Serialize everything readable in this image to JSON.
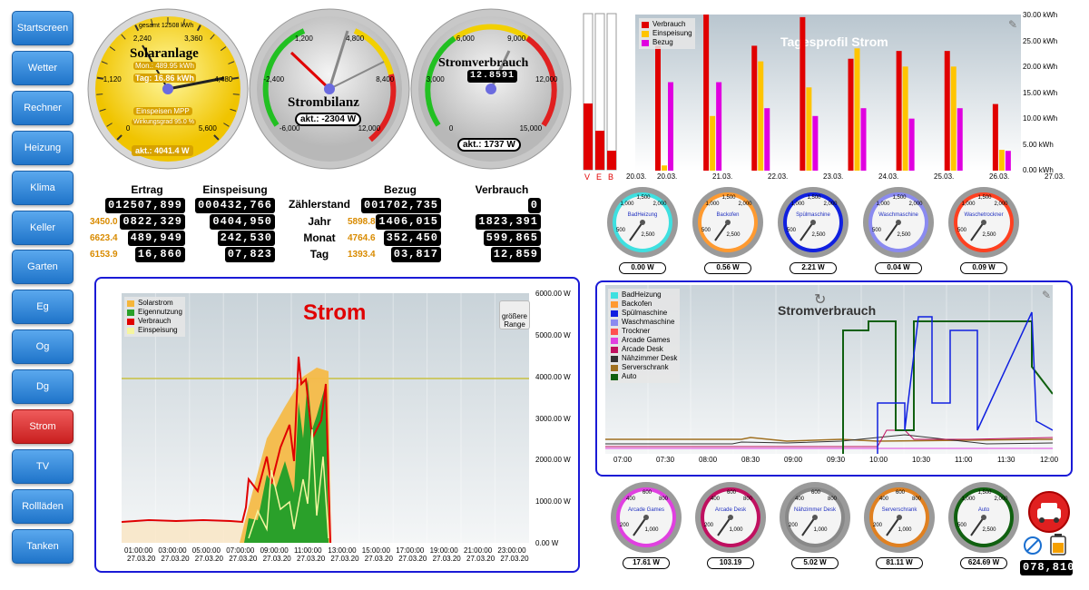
{
  "nav": {
    "items": [
      "Startscreen",
      "Wetter",
      "Rechner",
      "Heizung",
      "Klima",
      "Keller",
      "Garten",
      "Eg",
      "Og",
      "Dg",
      "Strom",
      "TV",
      "Rollläden",
      "Tanken"
    ],
    "active": "Strom"
  },
  "gauges": {
    "solar": {
      "title": "Solaranlage",
      "line1": "gesamt 12508 kWh",
      "line2": "Mon.: 489.95 kWh",
      "line3": "Tag: 16.86 kWh",
      "box1": "Einspeisen MPP",
      "box2": "Wirkungsgrad 95.0 %",
      "value": "akt.: 4041.4 W",
      "ticks": [
        "0",
        "1,120",
        "2,240",
        "3,360",
        "4,480",
        "5,600"
      ]
    },
    "bilanz": {
      "title": "Strombilanz",
      "value": "akt.: -2304 W",
      "ticks": [
        "-6,000",
        "-2,400",
        "1,200",
        "4,800",
        "8,400",
        "12,000"
      ]
    },
    "verbrauch": {
      "title": "Stromverbrauch",
      "counter": "12.8591",
      "value": "akt.: 1737 W",
      "ticks": [
        "0",
        "3,000",
        "6,000",
        "9,000",
        "12,000",
        "15,000"
      ]
    }
  },
  "vbars": {
    "labels": [
      "V",
      "E",
      "B"
    ]
  },
  "meter_table": {
    "headers": [
      "Ertrag",
      "Einspeisung",
      "Zählerstand",
      "Bezug",
      "Verbrauch"
    ],
    "rows": [
      {
        "label": "",
        "ertrag": "012507,899",
        "einsp": "000432,766",
        "bezug": "001702,735",
        "verbr": "0"
      },
      {
        "label": "Jahr",
        "side1": "3450.0",
        "ertrag": "0822,329",
        "einsp": "0404,950",
        "side2": "5898.8",
        "bezug": "1406,015",
        "verbr": "1823,391"
      },
      {
        "label": "Monat",
        "side1": "6623.4",
        "ertrag": "489,949",
        "einsp": "242,530",
        "side2": "4764.6",
        "bezug": "352,450",
        "verbr": "599,865"
      },
      {
        "label": "Tag",
        "side1": "6153.9",
        "ertrag": "16,860",
        "einsp": "07,823",
        "side2": "1393.4",
        "bezug": "03,817",
        "verbr": "12,859"
      }
    ]
  },
  "tagesprofil": {
    "title": "Tagesprofil Strom",
    "legend": [
      "Verbrauch",
      "Einspeisung",
      "Bezug"
    ],
    "colors": [
      "#e00000",
      "#ffc400",
      "#e000e0"
    ],
    "y_ticks": [
      "0.00 kWh",
      "5.00 kWh",
      "10.00 kWh",
      "15.00 kWh",
      "20.00 kWh",
      "25.00 kWh",
      "30.00 kWh"
    ],
    "x_ticks": [
      "20.03.",
      "21.03.",
      "22.03.",
      "23.03.",
      "24.03.",
      "25.03.",
      "26.03.",
      "27.03."
    ],
    "x_ticks2": [
      "20.03."
    ]
  },
  "chart_data": [
    {
      "type": "bar",
      "title": "Tagesprofil Strom",
      "categories": [
        "20.03.",
        "21.03.",
        "22.03.",
        "23.03.",
        "24.03.",
        "25.03.",
        "26.03.",
        "27.03."
      ],
      "ylim": [
        0,
        30
      ],
      "series": [
        {
          "name": "Verbrauch",
          "values": [
            24,
            30,
            24,
            29.5,
            21.5,
            23,
            23,
            12.8
          ]
        },
        {
          "name": "Einspeisung",
          "values": [
            1,
            10.5,
            21,
            16,
            23.5,
            20,
            20,
            4
          ]
        },
        {
          "name": "Bezug",
          "values": [
            17,
            17,
            12,
            10.5,
            12,
            10,
            12,
            3.8
          ]
        }
      ]
    },
    {
      "type": "area",
      "title": "Strom",
      "ylim": [
        0,
        6000
      ],
      "y_ticks": [
        "0.00 W",
        "1000.00 W",
        "2000.00 W",
        "3000.00 W",
        "4000.00 W",
        "5000.00 W",
        "6000.00 W"
      ],
      "x_ticks": [
        "01:00:00",
        "03:00:00",
        "05:00:00",
        "07:00:00",
        "09:00:00",
        "11:00:00",
        "13:00:00",
        "15:00:00",
        "17:00:00",
        "19:00:00",
        "21:00:00",
        "23:00:00"
      ],
      "x_date": "27.03.20",
      "series": [
        {
          "name": "Solarstrom"
        },
        {
          "name": "Eigennutzung"
        },
        {
          "name": "Verbrauch"
        },
        {
          "name": "Einspeisung"
        }
      ],
      "button": "größere Range"
    },
    {
      "type": "line",
      "title": "Stromverbrauch",
      "x_ticks": [
        "07:00",
        "07:30",
        "08:00",
        "08:30",
        "09:00",
        "09:30",
        "10:00",
        "10:30",
        "11:00",
        "11:30",
        "12:00"
      ],
      "series": [
        {
          "name": "BadHeizung"
        },
        {
          "name": "Backofen"
        },
        {
          "name": "Spülmaschine"
        },
        {
          "name": "Waschmaschine"
        },
        {
          "name": "Trockner"
        },
        {
          "name": "Arcade Games"
        },
        {
          "name": "Arcade Desk"
        },
        {
          "name": "Nähzimmer Desk"
        },
        {
          "name": "Serverschrank"
        },
        {
          "name": "Auto"
        }
      ]
    }
  ],
  "strom_chart": {
    "legend": [
      "Solarstrom",
      "Eigennutzung",
      "Verbrauch",
      "Einspeisung"
    ],
    "colors": [
      "#f5b63b",
      "#2aa02a",
      "#e00000",
      "#f5f5a0"
    ],
    "title": "Strom",
    "button": "größere Range"
  },
  "verbrauch_chart": {
    "title": "Stromverbrauch",
    "legend": [
      "BadHeizung",
      "Backofen",
      "Spülmaschine",
      "Waschmaschine",
      "Trockner",
      "Arcade Games",
      "Arcade Desk",
      "Nähzimmer Desk",
      "Serverschrank",
      "Auto"
    ],
    "colors": [
      "#3ee0e0",
      "#ff9a30",
      "#1020e0",
      "#8a8af0",
      "#ff5050",
      "#e040e0",
      "#c01060",
      "#333333",
      "#a07020",
      "#106010"
    ]
  },
  "small_gauges_top": [
    {
      "name": "BadHeizung",
      "value": "0.00 W",
      "ring": "#3ee0e0"
    },
    {
      "name": "Backofen",
      "value": "0.56 W",
      "ring": "#ff9a30"
    },
    {
      "name": "Spülmaschine",
      "value": "2.21 W",
      "ring": "#1020e0"
    },
    {
      "name": "Waschmaschine",
      "value": "0.04 W",
      "ring": "#8a8af0"
    },
    {
      "name": "Waschetrockner",
      "value": "0.09 W",
      "ring": "#ff4020"
    }
  ],
  "small_gauges_bottom": [
    {
      "name": "Arcade Games",
      "value": "17.61 W",
      "ring": "#e040e0"
    },
    {
      "name": "Arcade Desk",
      "value": "103.19",
      "ring": "#c01060"
    },
    {
      "name": "Nähzimmer Desk",
      "value": "5.02 W",
      "ring": "#888888"
    },
    {
      "name": "Serverschrank",
      "value": "81.11 W",
      "ring": "#e08020"
    },
    {
      "name": "Auto",
      "value": "624.69 W",
      "ring": "#106010"
    }
  ],
  "small_gauge_ticks": {
    "top": [
      "500",
      "1,000",
      "1,500",
      "2,000",
      "2,500"
    ],
    "bottom": [
      "200",
      "400",
      "600",
      "800",
      "1,000"
    ],
    "auto": [
      "500",
      "1,000",
      "1,500",
      "2,000",
      "2,500"
    ]
  },
  "car_counter": "078,810"
}
